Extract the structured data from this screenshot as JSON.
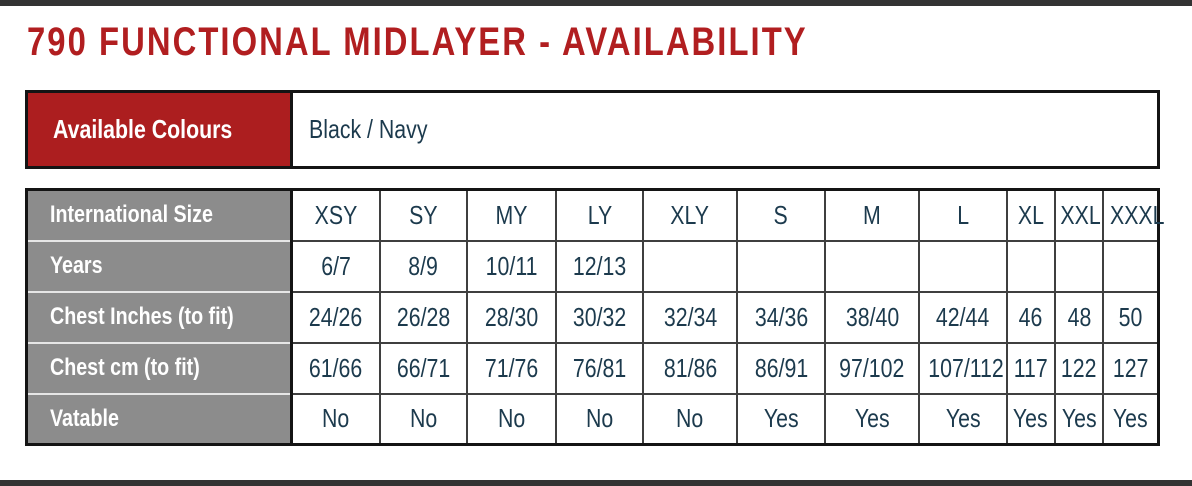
{
  "page": {
    "title": "790 FUNCTIONAL MIDLAYER - AVAILABILITY"
  },
  "colors": {
    "title_red": "#B11E20",
    "brand_red": "#AC1E1F",
    "header_gray": "#8C8C8C",
    "text_navy": "#1C3A4D",
    "bar_dark": "#333333",
    "border_black": "#141414",
    "grid_dark": "#3F3F3F"
  },
  "colours_table": {
    "label": "Available Colours",
    "value": "Black / Navy"
  },
  "size_table": {
    "rows": [
      {
        "label": "International Size",
        "values": [
          "XSY",
          "SY",
          "MY",
          "LY",
          "XLY",
          "S",
          "M",
          "L",
          "XL",
          "XXL",
          "XXXL"
        ]
      },
      {
        "label": "Years",
        "values": [
          "6/7",
          "8/9",
          "10/11",
          "12/13",
          "",
          "",
          "",
          "",
          "",
          "",
          ""
        ]
      },
      {
        "label": "Chest Inches (to fit)",
        "values": [
          "24/26",
          "26/28",
          "28/30",
          "30/32",
          "32/34",
          "34/36",
          "38/40",
          "42/44",
          "46",
          "48",
          "50"
        ]
      },
      {
        "label": "Chest cm (to fit)",
        "values": [
          "61/66",
          "66/71",
          "71/76",
          "76/81",
          "81/86",
          "86/91",
          "97/102",
          "107/112",
          "117",
          "122",
          "127"
        ]
      },
      {
        "label": "Vatable",
        "values": [
          "No",
          "No",
          "No",
          "No",
          "No",
          "Yes",
          "Yes",
          "Yes",
          "Yes",
          "Yes",
          "Yes"
        ]
      }
    ]
  }
}
